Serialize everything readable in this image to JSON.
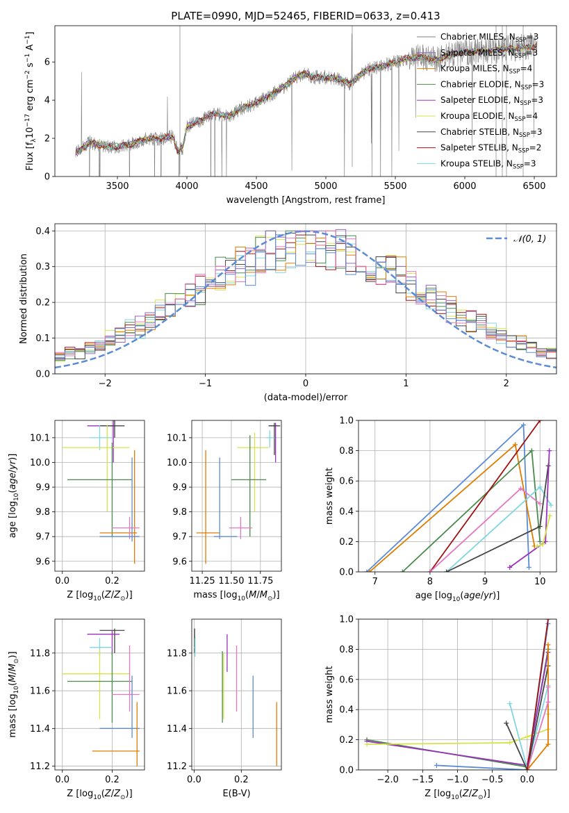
{
  "figure_title": "PLATE=0990, MJD=52465, FIBERID=0633, z=0.413",
  "colors": {
    "data_spectrum": "#808080",
    "gaussian_curve": "#5b8bd6"
  },
  "chart_data": [
    {
      "id": "spectrum",
      "type": "line",
      "title": "PLATE=0990, MJD=52465, FIBERID=0633, z=0.413",
      "xlabel": "wavelength [Angstrom, rest frame]",
      "ylabel": "Flux [f_λ 10^-17 erg cm^-2 s^-1 A^-1]",
      "xlim": [
        3050,
        6660
      ],
      "ylim": [
        0,
        7.9
      ],
      "xticks": [
        3500,
        4000,
        4500,
        5000,
        5500,
        6000,
        6500
      ],
      "yticks": [
        0,
        2,
        4,
        6
      ],
      "x_range": [
        3200,
        6520
      ],
      "continuum_knots": [
        [
          3200,
          1.2
        ],
        [
          3250,
          1.5
        ],
        [
          3300,
          1.8
        ],
        [
          3400,
          1.6
        ],
        [
          3500,
          1.55
        ],
        [
          3600,
          1.7
        ],
        [
          3700,
          1.95
        ],
        [
          3800,
          2.0
        ],
        [
          3900,
          2.1
        ],
        [
          3935,
          1.3
        ],
        [
          3970,
          1.5
        ],
        [
          4000,
          2.6
        ],
        [
          4100,
          2.95
        ],
        [
          4200,
          3.3
        ],
        [
          4300,
          3.15
        ],
        [
          4400,
          3.6
        ],
        [
          4500,
          3.85
        ],
        [
          4600,
          4.25
        ],
        [
          4700,
          4.7
        ],
        [
          4800,
          5.3
        ],
        [
          4860,
          5.4
        ],
        [
          4900,
          5.2
        ],
        [
          5000,
          5.2
        ],
        [
          5100,
          5.1
        ],
        [
          5170,
          4.85
        ],
        [
          5300,
          5.6
        ],
        [
          5400,
          5.75
        ],
        [
          5500,
          6.0
        ],
        [
          5600,
          6.2
        ],
        [
          5700,
          6.25
        ],
        [
          5800,
          6.1
        ],
        [
          5900,
          6.4
        ],
        [
          6000,
          6.5
        ],
        [
          6100,
          6.55
        ],
        [
          6200,
          6.6
        ],
        [
          6300,
          6.7
        ],
        [
          6400,
          6.75
        ],
        [
          6520,
          6.85
        ]
      ],
      "noise_sigma": 0.38,
      "series": [
        {
          "name": "Chabrier MILES, N_SSP=3",
          "color": "#7f7f7f"
        },
        {
          "name": "Salpeter MILES, N_SSP=3",
          "color": "#9467bd"
        },
        {
          "name": "Kroupa MILES, N_SSP=4",
          "color": "#e07b00"
        },
        {
          "name": "Chabrier ELODIE, N_SSP=3",
          "color": "#4a8a4a"
        },
        {
          "name": "Salpeter ELODIE, N_SSP=3",
          "color": "#9b30c0"
        },
        {
          "name": "Kroupa ELODIE, N_SSP=4",
          "color": "#d6e34a"
        },
        {
          "name": "Chabrier STELIB, N_SSP=3",
          "color": "#444444"
        },
        {
          "name": "Salpeter STELIB, N_SSP=2",
          "color": "#a01010"
        },
        {
          "name": "Kroupa STELIB, N_SSP=3",
          "color": "#7fd6e0"
        }
      ],
      "legend": "right",
      "grid": false
    },
    {
      "id": "residuals",
      "type": "histogram",
      "xlabel": "(data-model)/error",
      "ylabel": "Normed distribution",
      "xlim": [
        -2.5,
        2.5
      ],
      "ylim": [
        0,
        0.42
      ],
      "xticks": [
        -2,
        -1,
        0,
        1,
        2
      ],
      "yticks": [
        0.0,
        0.1,
        0.2,
        0.3,
        0.4
      ],
      "bin_width": 0.1,
      "reference_curve": {
        "name": "𝒩(0, 1)",
        "mean": 0,
        "sigma": 1,
        "style": "dashed"
      },
      "series_colors": [
        "#d6e34a",
        "#7fd6e0",
        "#4a8a4a",
        "#a01010",
        "#9467bd",
        "#e07b00",
        "#444444",
        "#e377c2",
        "#5b8bd6"
      ],
      "histogram_shape": {
        "center": 0.05,
        "sigma": 1.15,
        "peak": 0.34
      },
      "legend": "upper right",
      "grid": true
    },
    {
      "id": "age_vs_Z",
      "type": "errorbar",
      "xlabel": "Z [log10(Z/Z⊙)]",
      "ylabel": "age  [log10(age/yr)]",
      "xlim": [
        -0.03,
        0.33
      ],
      "ylim": [
        9.56,
        10.17
      ],
      "xticks": [
        0.0,
        0.2
      ],
      "yticks": [
        9.6,
        9.7,
        9.8,
        9.9,
        10.0,
        10.1
      ],
      "points": [
        {
          "x": 0.205,
          "y": 10.148,
          "xerr": [
            0.1,
            0.21
          ],
          "yerr": [
            10.0,
            10.17
          ],
          "color": "#9b30c0"
        },
        {
          "x": 0.21,
          "y": 10.148,
          "xerr": [
            0.15,
            0.25
          ],
          "yerr": [
            10.1,
            10.17
          ],
          "color": "#444444"
        },
        {
          "x": 0.15,
          "y": 10.1,
          "xerr": [
            0.11,
            0.2
          ],
          "yerr": [
            10.05,
            10.15
          ],
          "color": "#7fd6e0"
        },
        {
          "x": 0.18,
          "y": 10.06,
          "xerr": [
            0.0,
            0.27
          ],
          "yerr": [
            9.8,
            10.15
          ],
          "color": "#d6e34a"
        },
        {
          "x": 0.2,
          "y": 9.93,
          "xerr": [
            0.02,
            0.28
          ],
          "yerr": [
            9.7,
            10.08
          ],
          "color": "#4a8a4a"
        },
        {
          "x": 0.29,
          "y": 9.715,
          "xerr": [
            0.15,
            0.3
          ],
          "yerr": [
            9.59,
            10.05
          ],
          "color": "#e07b00"
        },
        {
          "x": 0.27,
          "y": 9.735,
          "xerr": [
            0.2,
            0.31
          ],
          "yerr": [
            9.69,
            9.78
          ],
          "color": "#e377c2"
        },
        {
          "x": 0.28,
          "y": 9.7,
          "xerr": [
            0.15,
            0.31
          ],
          "yerr": [
            9.68,
            10.02
          ],
          "color": "#5b8bd6"
        }
      ],
      "grid": true
    },
    {
      "id": "age_vs_mass",
      "type": "errorbar",
      "xlabel": "mass [log10(M/M⊙)]",
      "ylabel": "",
      "xlim": [
        11.16,
        11.93
      ],
      "ylim": [
        9.56,
        10.17
      ],
      "xticks": [
        11.25,
        11.5,
        11.75
      ],
      "yticks": [
        9.6,
        9.7,
        9.8,
        9.9,
        10.0,
        10.1
      ],
      "points": [
        {
          "x": 11.88,
          "y": 10.148,
          "xerr": [
            11.82,
            11.9
          ],
          "yerr": [
            10.0,
            10.16
          ],
          "color": "#9b30c0"
        },
        {
          "x": 11.87,
          "y": 10.148,
          "xerr": [
            11.82,
            11.92
          ],
          "yerr": [
            10.03,
            10.16
          ],
          "color": "#444444"
        },
        {
          "x": 11.83,
          "y": 10.1,
          "xerr": [
            11.8,
            11.87
          ],
          "yerr": [
            10.06,
            10.13
          ],
          "color": "#7fd6e0"
        },
        {
          "x": 11.7,
          "y": 10.06,
          "xerr": [
            11.55,
            11.82
          ],
          "yerr": [
            9.8,
            10.12
          ],
          "color": "#d6e34a"
        },
        {
          "x": 11.66,
          "y": 9.93,
          "xerr": [
            11.5,
            11.8
          ],
          "yerr": [
            9.7,
            10.11
          ],
          "color": "#4a8a4a"
        },
        {
          "x": 11.28,
          "y": 9.715,
          "xerr": [
            11.2,
            11.4
          ],
          "yerr": [
            9.59,
            10.05
          ],
          "color": "#e07b00"
        },
        {
          "x": 11.58,
          "y": 9.735,
          "xerr": [
            11.48,
            11.68
          ],
          "yerr": [
            9.69,
            9.78
          ],
          "color": "#e377c2"
        },
        {
          "x": 11.4,
          "y": 9.7,
          "xerr": [
            11.35,
            11.55
          ],
          "yerr": [
            9.69,
            10.02
          ],
          "color": "#5b8bd6"
        }
      ],
      "grid": true
    },
    {
      "id": "mass_weight_vs_age",
      "type": "line",
      "xlabel": "age  [log10(age/yr)]",
      "ylabel": "mass weight",
      "xlim": [
        6.7,
        10.3
      ],
      "ylim": [
        0,
        1
      ],
      "xticks": [
        7,
        8,
        9,
        10
      ],
      "yticks": [
        0.0,
        0.2,
        0.4,
        0.6,
        0.8,
        1.0
      ],
      "series": [
        {
          "color": "#5b8bd6",
          "points": [
            [
              6.85,
              0.0
            ],
            [
              9.7,
              0.97
            ],
            [
              9.8,
              0.03
            ]
          ]
        },
        {
          "color": "#e07b00",
          "points": [
            [
              6.9,
              0.0
            ],
            [
              9.55,
              0.84
            ],
            [
              9.9,
              0.17
            ]
          ]
        },
        {
          "color": "#4a8a4a",
          "points": [
            [
              7.5,
              0.0
            ],
            [
              9.85,
              0.8
            ],
            [
              10.0,
              0.2
            ]
          ]
        },
        {
          "color": "#a01010",
          "points": [
            [
              8.0,
              0.0
            ],
            [
              10.0,
              1.0
            ]
          ]
        },
        {
          "color": "#e377c2",
          "points": [
            [
              8.0,
              0.0
            ],
            [
              9.65,
              0.55
            ],
            [
              10.0,
              0.45
            ]
          ]
        },
        {
          "color": "#7fd6e0",
          "points": [
            [
              8.3,
              0.0
            ],
            [
              10.0,
              0.56
            ],
            [
              10.2,
              0.44
            ]
          ]
        },
        {
          "color": "#444444",
          "points": [
            [
              8.3,
              0.0
            ],
            [
              10.0,
              0.3
            ],
            [
              10.15,
              0.7
            ]
          ]
        },
        {
          "color": "#9b30c0",
          "points": [
            [
              9.45,
              0.03
            ],
            [
              10.1,
              0.2
            ],
            [
              10.17,
              0.8
            ]
          ]
        },
        {
          "color": "#d6e34a",
          "points": [
            [
              9.95,
              0.17
            ],
            [
              10.05,
              0.18
            ],
            [
              10.18,
              0.37
            ]
          ]
        }
      ],
      "grid": true
    },
    {
      "id": "mass_vs_Z",
      "type": "errorbar",
      "xlabel": "Z [log10(Z/Z⊙)]",
      "ylabel": "mass [log10(M/M⊙)]",
      "xlim": [
        -0.03,
        0.33
      ],
      "ylim": [
        11.18,
        11.98
      ],
      "xticks": [
        0.0,
        0.2
      ],
      "yticks": [
        11.2,
        11.4,
        11.6,
        11.8
      ],
      "points": [
        {
          "x": 0.21,
          "y": 11.92,
          "xerr": [
            0.15,
            0.25
          ],
          "yerr": [
            11.8,
            11.93
          ],
          "color": "#444444"
        },
        {
          "x": 0.2,
          "y": 11.9,
          "xerr": [
            0.1,
            0.23
          ],
          "yerr": [
            11.79,
            11.92
          ],
          "color": "#9b30c0"
        },
        {
          "x": 0.15,
          "y": 11.83,
          "xerr": [
            0.11,
            0.2
          ],
          "yerr": [
            11.78,
            11.88
          ],
          "color": "#7fd6e0"
        },
        {
          "x": 0.15,
          "y": 11.69,
          "xerr": [
            0.0,
            0.27
          ],
          "yerr": [
            11.45,
            11.82
          ],
          "color": "#d6e34a"
        },
        {
          "x": 0.2,
          "y": 11.65,
          "xerr": [
            0.02,
            0.28
          ],
          "yerr": [
            11.43,
            11.81
          ],
          "color": "#4a8a4a"
        },
        {
          "x": 0.27,
          "y": 11.58,
          "xerr": [
            0.2,
            0.31
          ],
          "yerr": [
            11.49,
            11.84
          ],
          "color": "#e377c2"
        },
        {
          "x": 0.28,
          "y": 11.4,
          "xerr": [
            0.15,
            0.31
          ],
          "yerr": [
            11.35,
            11.68
          ],
          "color": "#5b8bd6"
        },
        {
          "x": 0.3,
          "y": 11.28,
          "xerr": [
            0.12,
            0.31
          ],
          "yerr": [
            11.2,
            11.54
          ],
          "color": "#e07b00"
        }
      ],
      "grid": true
    },
    {
      "id": "mass_vs_ebv",
      "type": "errorbar",
      "xlabel": "E(B-V)",
      "ylabel": "",
      "xlim": [
        -0.01,
        0.37
      ],
      "ylim": [
        11.18,
        11.98
      ],
      "xticks": [
        0.0,
        0.2
      ],
      "yticks": [
        11.2,
        11.4,
        11.6,
        11.8
      ],
      "points": [
        {
          "x": 0.002,
          "y": 11.88,
          "xerr": [
            0.0,
            0.005
          ],
          "yerr": [
            11.8,
            11.93
          ],
          "color": "#444444"
        },
        {
          "x": 0.004,
          "y": 11.83,
          "xerr": [
            0.0,
            0.007
          ],
          "yerr": [
            11.78,
            11.88
          ],
          "color": "#7fd6e0"
        },
        {
          "x": 0.14,
          "y": 11.78,
          "xerr": [
            0.14,
            0.14
          ],
          "yerr": [
            11.7,
            11.9
          ],
          "color": "#9b30c0"
        },
        {
          "x": 0.12,
          "y": 11.65,
          "xerr": [
            0.12,
            0.12
          ],
          "yerr": [
            11.43,
            11.81
          ],
          "color": "#4a8a4a"
        },
        {
          "x": 0.125,
          "y": 11.6,
          "xerr": [
            0.125,
            0.125
          ],
          "yerr": [
            11.45,
            11.8
          ],
          "color": "#d6e34a"
        },
        {
          "x": 0.18,
          "y": 11.65,
          "xerr": [
            0.18,
            0.18
          ],
          "yerr": [
            11.49,
            11.84
          ],
          "color": "#e377c2"
        },
        {
          "x": 0.25,
          "y": 11.5,
          "xerr": [
            0.25,
            0.25
          ],
          "yerr": [
            11.35,
            11.68
          ],
          "color": "#5b8bd6"
        },
        {
          "x": 0.35,
          "y": 11.35,
          "xerr": [
            0.35,
            0.35
          ],
          "yerr": [
            11.2,
            11.54
          ],
          "color": "#e07b00"
        }
      ],
      "grid": true
    },
    {
      "id": "mass_weight_vs_Z",
      "type": "line",
      "xlabel": "Z [log10(Z/Z⊙)]",
      "ylabel": "mass weight",
      "xlim": [
        -2.42,
        0.42
      ],
      "ylim": [
        0,
        1
      ],
      "xticks": [
        -2.0,
        -1.5,
        -1.0,
        -0.5,
        0.0
      ],
      "yticks": [
        0.0,
        0.2,
        0.4,
        0.6,
        0.8,
        1.0
      ],
      "series": [
        {
          "color": "#4a8a4a",
          "points": [
            [
              -2.3,
              0.2
            ],
            [
              0.0,
              0.02
            ],
            [
              0.3,
              0.8
            ]
          ]
        },
        {
          "color": "#9b30c0",
          "points": [
            [
              -2.3,
              0.19
            ],
            [
              0.0,
              0.03
            ],
            [
              0.3,
              0.78
            ]
          ]
        },
        {
          "color": "#d6e34a",
          "points": [
            [
              -2.3,
              0.17
            ],
            [
              -0.25,
              0.18
            ],
            [
              0.0,
              0.22
            ],
            [
              0.3,
              0.27
            ],
            [
              0.3,
              0.37
            ]
          ]
        },
        {
          "color": "#5b8bd6",
          "points": [
            [
              -1.3,
              0.03
            ],
            [
              0.0,
              0.0
            ],
            [
              0.3,
              0.97
            ]
          ]
        },
        {
          "color": "#7fd6e0",
          "points": [
            [
              -0.25,
              0.44
            ],
            [
              0.0,
              0.01
            ],
            [
              0.3,
              0.56
            ]
          ]
        },
        {
          "color": "#444444",
          "points": [
            [
              -0.3,
              0.31
            ],
            [
              0.0,
              0.0
            ],
            [
              0.3,
              0.69
            ]
          ]
        },
        {
          "color": "#e07b00",
          "points": [
            [
              0.0,
              0.0
            ],
            [
              0.3,
              0.17
            ],
            [
              0.3,
              0.83
            ]
          ]
        },
        {
          "color": "#e377c2",
          "points": [
            [
              0.0,
              0.0
            ],
            [
              0.3,
              0.45
            ],
            [
              0.3,
              0.55
            ]
          ]
        },
        {
          "color": "#a01010",
          "points": [
            [
              0.0,
              0.0
            ],
            [
              0.3,
              1.0
            ]
          ]
        }
      ],
      "grid": true
    }
  ]
}
